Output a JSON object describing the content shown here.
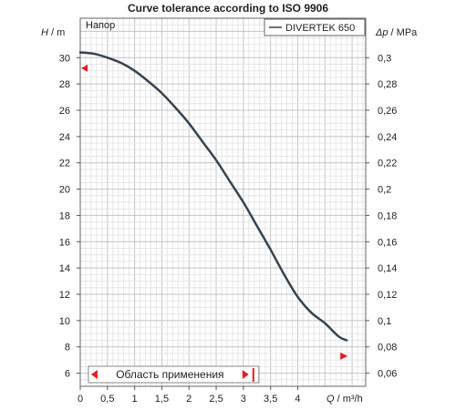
{
  "chart_data": {
    "type": "line",
    "title": "Curve tolerance according to ISO 9906",
    "ylabel_left": "H / m",
    "ylabel_left_var": "H",
    "ylabel_left_unit": " / m",
    "ylabel_right": "Δp / MPa",
    "ylabel_right_var": "Δp",
    "ylabel_right_unit": " / MPa",
    "xlabel": "Q / m³/h",
    "xlabel_var": "Q",
    "xlabel_unit": " / m³/h",
    "xlim": [
      0,
      5.25
    ],
    "ylim_left": [
      5,
      33
    ],
    "ylim_right": [
      0.05,
      0.33
    ],
    "x_ticks": [
      "0",
      "0,5",
      "1",
      "1,5",
      "2",
      "2,5",
      "3",
      "3,5",
      "4"
    ],
    "y_left_ticks": [
      "6",
      "8",
      "10",
      "12",
      "14",
      "16",
      "18",
      "20",
      "22",
      "24",
      "26",
      "28",
      "30"
    ],
    "y_right_ticks": [
      "0,06",
      "0,08",
      "0,1",
      "0,12",
      "0,14",
      "0,16",
      "0,18",
      "0,2",
      "0,22",
      "0,24",
      "0,26",
      "0,28",
      "0,3"
    ],
    "grid": true,
    "legend": {
      "position": "top-right",
      "entries": [
        "DIVERTEK 650"
      ]
    },
    "series_label": "Напор",
    "series": [
      {
        "name": "DIVERTEK 650",
        "color": "#37434f",
        "x": [
          0,
          0.25,
          0.5,
          0.75,
          1,
          1.25,
          1.5,
          1.75,
          2,
          2.25,
          2.5,
          2.75,
          3,
          3.25,
          3.5,
          3.75,
          4,
          4.25,
          4.5,
          4.75,
          4.9
        ],
        "y": [
          30.4,
          30.3,
          30.0,
          29.6,
          29.0,
          28.2,
          27.3,
          26.2,
          25.0,
          23.6,
          22.2,
          20.6,
          19.0,
          17.2,
          15.4,
          13.5,
          11.8,
          10.6,
          9.8,
          8.8,
          8.5
        ]
      }
    ],
    "tolerance_markers": [
      {
        "x": 0,
        "y": 29.2,
        "direction": "left",
        "color": "#e02020"
      },
      {
        "x": 4.85,
        "y": 7.3,
        "direction": "right",
        "color": "#e02020"
      }
    ],
    "operating_range": {
      "label": "Область применения",
      "x_start": 0.2,
      "x_end": 3.1,
      "color": "#e02020"
    }
  }
}
